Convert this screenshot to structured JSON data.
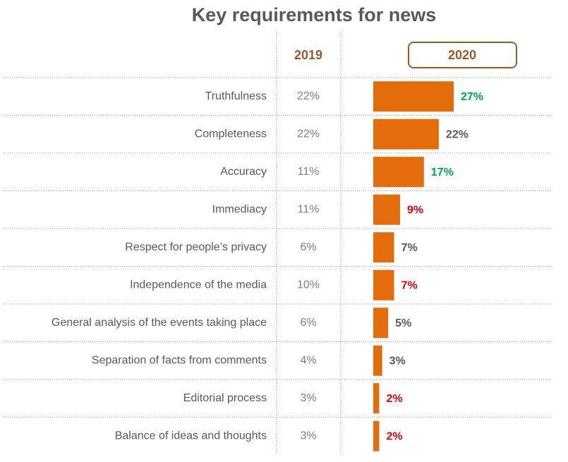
{
  "chart_data": {
    "type": "bar",
    "orientation": "horizontal",
    "title": "Key requirements for news",
    "categories": [
      "Truthfulness",
      "Completeness",
      "Accuracy",
      "Immediacy",
      "Respect for people’s privacy",
      "Independence of the media",
      "General analysis of the events taking place",
      "Separation of facts from comments",
      "Editorial process",
      "Balance of ideas and thoughts"
    ],
    "series": [
      {
        "name": "2019",
        "color": "#9a5b2c",
        "values": [
          22,
          22,
          11,
          11,
          6,
          10,
          6,
          4,
          3,
          3
        ],
        "value_labels": [
          "22%",
          "22%",
          "11%",
          "11%",
          "6%",
          "10%",
          "6%",
          "4%",
          "3%",
          "3%"
        ]
      },
      {
        "name": "2020",
        "color": "#e46c0a",
        "values": [
          27,
          22,
          17,
          9,
          7,
          7,
          5,
          3,
          2,
          2
        ],
        "value_labels": [
          "27%",
          "22%",
          "17%",
          "9%",
          "7%",
          "7%",
          "5%",
          "3%",
          "2%",
          "2%"
        ],
        "label_colors": [
          "#00a650",
          "#595959",
          "#00a650",
          "#e00010",
          "#595959",
          "#e00010",
          "#595959",
          "#595959",
          "#e00010",
          "#e00010"
        ]
      }
    ]
  }
}
